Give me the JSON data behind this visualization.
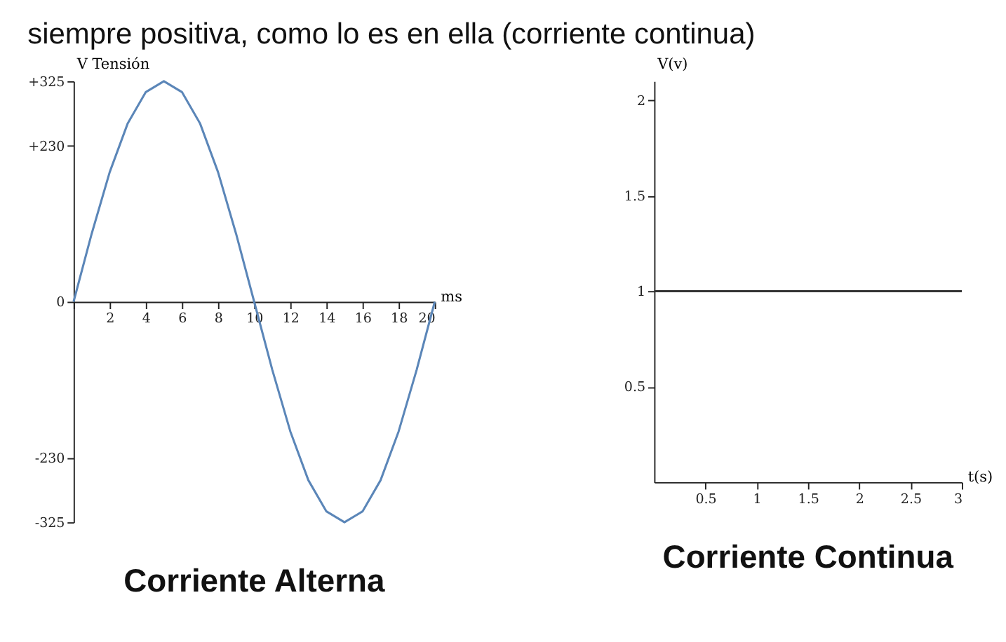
{
  "chart_data": [
    {
      "type": "line",
      "annotations": [
        "siempre positiva, como lo es en ella (corriente continua)"
      ],
      "subtitle": "Corriente Alterna",
      "ylabel": "V Tensión",
      "xlabel": "ms",
      "x": [
        0,
        1,
        2,
        3,
        4,
        5,
        6,
        7,
        8,
        9,
        10,
        11,
        12,
        13,
        14,
        15,
        16,
        17,
        18,
        19,
        20
      ],
      "series": [
        {
          "color": "#5b86b8",
          "values": [
            0,
            100,
            191,
            263,
            309,
            325,
            309,
            263,
            191,
            100,
            0,
            -100,
            -191,
            -263,
            -309,
            -325,
            -309,
            -263,
            -191,
            -100,
            0
          ]
        }
      ],
      "xlim": [
        0,
        20
      ],
      "xticks": [
        {
          "value": 0,
          "label": null
        },
        2,
        4,
        6,
        8,
        10,
        12,
        14,
        16,
        18,
        20
      ],
      "ylim": [
        -325,
        325
      ],
      "yticks": [
        {
          "value": 325,
          "label": "+325"
        },
        {
          "value": 230,
          "label": "+230"
        },
        0,
        {
          "value": -230,
          "label": "-230"
        },
        -325
      ],
      "grid": false,
      "line_style": "solid"
    },
    {
      "type": "line",
      "subtitle": "Corriente Continua",
      "ylabel": "V(v)",
      "xlabel": "t(s)",
      "x": [
        0,
        3
      ],
      "series": [
        {
          "color": "#333333",
          "values": [
            1,
            1
          ]
        }
      ],
      "xlim": [
        0,
        3
      ],
      "xticks": [
        0.5,
        1,
        1.5,
        2,
        2.5,
        3
      ],
      "ylim": [
        0,
        2.1
      ],
      "yticks": [
        0.5,
        1,
        1.5,
        2
      ],
      "grid": false,
      "line_style": "solid"
    }
  ]
}
